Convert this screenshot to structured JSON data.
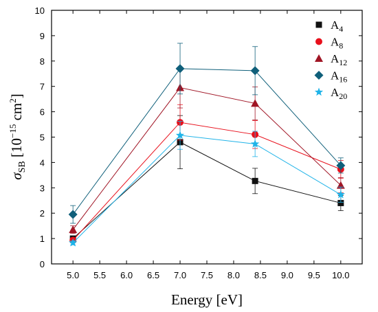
{
  "chart_data": {
    "type": "line",
    "xlabel": "Energy [eV]",
    "ylabel": {
      "symbol": "σ",
      "subscript": "SB",
      "unit_prefix": " [10",
      "unit_exponent": "−15",
      "unit_middle": " cm",
      "unit_power": "2",
      "unit_suffix": "]"
    },
    "xlim": [
      4.6,
      10.4
    ],
    "ylim": [
      0,
      10
    ],
    "xticks": [
      "5.0",
      "5.5",
      "6.0",
      "6.5",
      "7.0",
      "7.5",
      "8.0",
      "8.5",
      "9.0",
      "9.5",
      "10.0"
    ],
    "yticks": [
      "0",
      "1",
      "2",
      "3",
      "4",
      "5",
      "6",
      "7",
      "8",
      "9",
      "10"
    ],
    "legend_position": "top-right",
    "grid": false,
    "x": [
      5.0,
      7.0,
      8.4,
      10.0
    ],
    "series": [
      {
        "name": "A",
        "sub": "4",
        "color": "#111111",
        "marker": "square",
        "values": [
          1.0,
          4.8,
          3.27,
          2.4
        ],
        "errors": [
          0.1,
          1.05,
          0.5,
          0.3
        ]
      },
      {
        "name": "A",
        "sub": "8",
        "color": "#e8101c",
        "marker": "circle",
        "values": [
          0.93,
          5.58,
          5.1,
          3.73
        ],
        "errors": [
          0.1,
          0.7,
          0.55,
          0.35
        ]
      },
      {
        "name": "A",
        "sub": "12",
        "color": "#a01525",
        "marker": "triangle",
        "values": [
          1.35,
          6.95,
          6.33,
          3.1
        ],
        "errors": [
          0.15,
          0.8,
          0.65,
          0.3
        ]
      },
      {
        "name": "A",
        "sub": "16",
        "color": "#0f5f7a",
        "marker": "diamond",
        "values": [
          1.95,
          7.7,
          7.62,
          3.88
        ],
        "errors": [
          0.35,
          1.0,
          0.95,
          0.3
        ]
      },
      {
        "name": "A",
        "sub": "20",
        "color": "#1fb3e8",
        "marker": "star",
        "values": [
          0.83,
          5.07,
          4.73,
          2.73
        ],
        "errors": [
          0.08,
          0.55,
          0.5,
          0.3
        ]
      }
    ]
  }
}
